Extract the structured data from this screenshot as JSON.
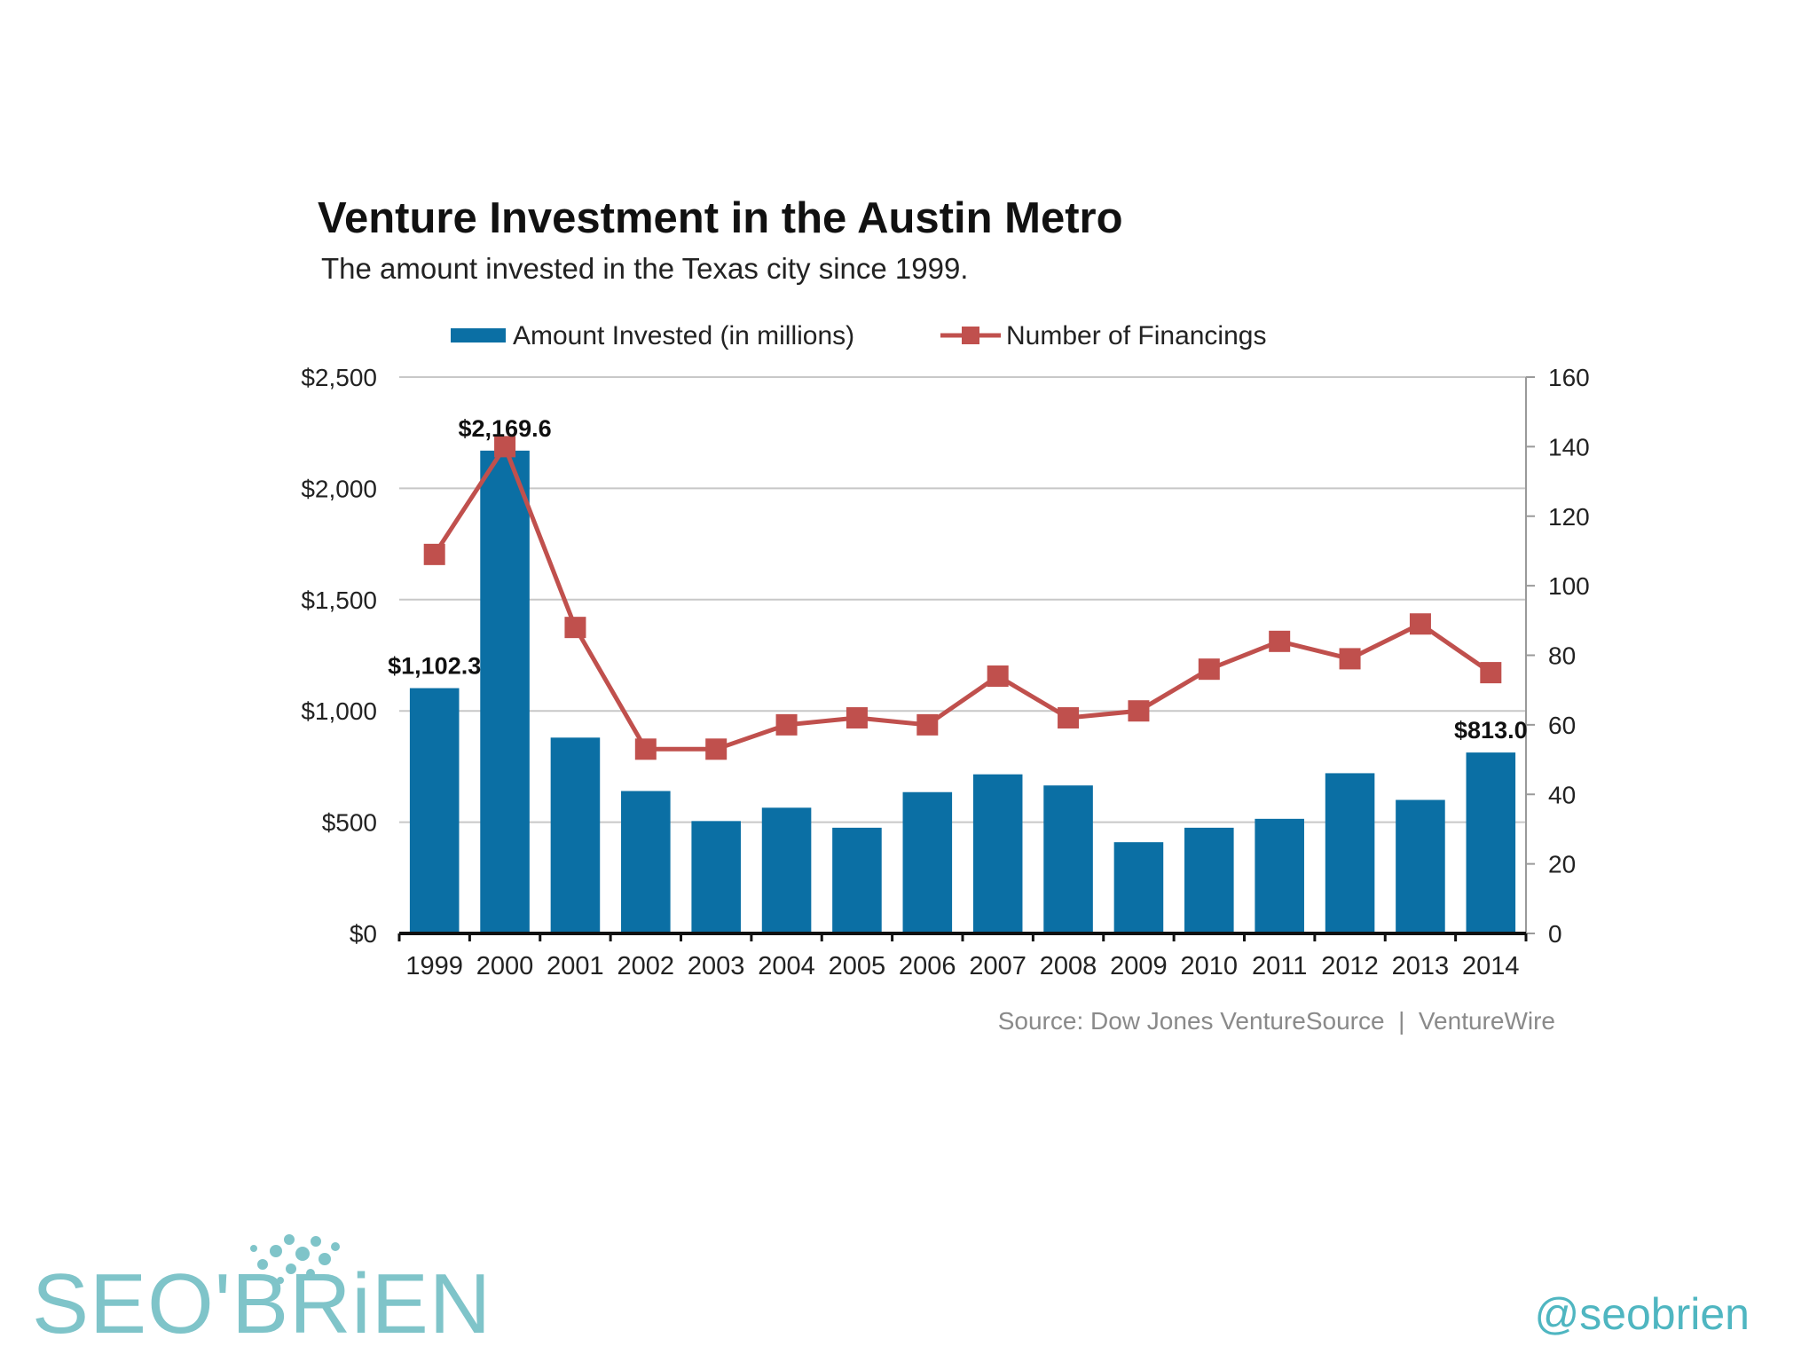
{
  "chart_data": {
    "type": "bar+line",
    "title": "Venture Investment in the Austin Metro",
    "subtitle": "The amount invested in the Texas city since 1999.",
    "categories": [
      "1999",
      "2000",
      "2001",
      "2002",
      "2003",
      "2004",
      "2005",
      "2006",
      "2007",
      "2008",
      "2009",
      "2010",
      "2011",
      "2012",
      "2013",
      "2014"
    ],
    "series": [
      {
        "name": "Amount Invested (in millions)",
        "type": "bar",
        "axis": "left",
        "color": "#0b6fa4",
        "values": [
          1102.3,
          2169.6,
          880,
          640,
          505,
          565,
          475,
          635,
          715,
          665,
          410,
          475,
          515,
          720,
          600,
          813.0
        ]
      },
      {
        "name": "Number of Financings",
        "type": "line",
        "axis": "right",
        "color": "#c0504d",
        "values": [
          109,
          140,
          88,
          53,
          53,
          60,
          62,
          60,
          74,
          62,
          64,
          76,
          84,
          79,
          89,
          75
        ]
      }
    ],
    "data_labels": [
      {
        "index": 0,
        "text": "$1,102.3"
      },
      {
        "index": 1,
        "text": "$2,169.6"
      },
      {
        "index": 15,
        "text": "$813.0"
      }
    ],
    "y_left": {
      "ticks": [
        0,
        500,
        1000,
        1500,
        2000,
        2500
      ],
      "labels": [
        "$0",
        "$500",
        "$1,000",
        "$1,500",
        "$2,000",
        "$2,500"
      ],
      "ylim": [
        0,
        2500
      ]
    },
    "y_right": {
      "ticks": [
        0,
        20,
        40,
        60,
        80,
        100,
        120,
        140,
        160
      ],
      "labels": [
        "0",
        "20",
        "40",
        "60",
        "80",
        "100",
        "120",
        "140",
        "160"
      ],
      "ylim": [
        0,
        160
      ]
    },
    "grid": true,
    "legend": "top-center",
    "source": "Source: Dow Jones VentureSource  |  VentureWire"
  },
  "branding": {
    "logo_text": "SEO'BRiEN",
    "handle": "@seobrien",
    "logo_color": "#7fc4c9",
    "handle_color": "#4fb6c1"
  }
}
